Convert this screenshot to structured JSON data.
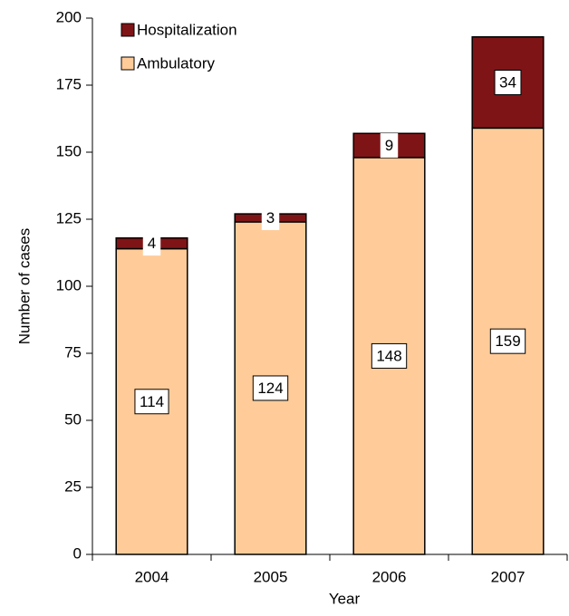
{
  "chart_data": {
    "type": "stacked_bar",
    "x_label": "Year",
    "y_label": "Number of cases",
    "categories": [
      "2004",
      "2005",
      "2006",
      "2007"
    ],
    "series": [
      {
        "name": "Ambulatory",
        "color": "#ffcc99",
        "values": [
          114,
          124,
          148,
          159
        ]
      },
      {
        "name": "Hospitalization",
        "color": "#7f1416",
        "values": [
          4,
          3,
          9,
          34
        ]
      }
    ],
    "ylim": [
      0,
      200
    ],
    "yticks": [
      0,
      25,
      50,
      75,
      100,
      125,
      150,
      175,
      200
    ],
    "grid": false
  }
}
